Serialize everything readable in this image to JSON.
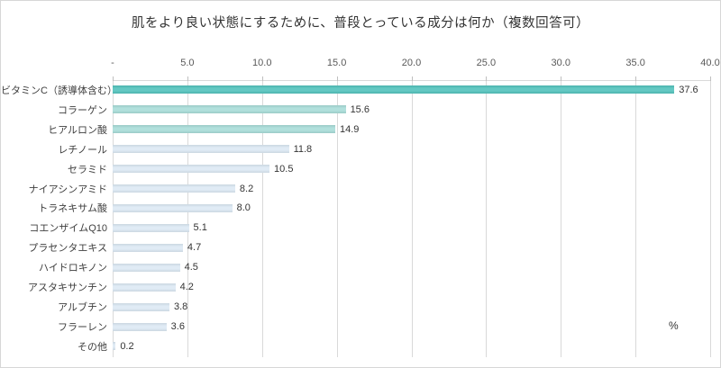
{
  "chart_data": {
    "type": "bar",
    "orientation": "horizontal",
    "title": "肌をより良い状態にするために、普段とっている成分は何か（複数回答可）",
    "unit": "%",
    "xlabel": "",
    "ylabel": "",
    "xlim": [
      0,
      40
    ],
    "grid": "vertical-on",
    "legend": "none",
    "value_labels": "outside-end",
    "x_tick_labels": [
      "-",
      "5.0",
      "10.0",
      "15.0",
      "20.0",
      "25.0",
      "30.0",
      "35.0",
      "40.0"
    ],
    "categories": [
      "ビタミンC（誘導体含む）",
      "コラーゲン",
      "ヒアルロン酸",
      "レチノール",
      "セラミド",
      "ナイアシンアミド",
      "トラネキサム酸",
      "コエンザイムQ10",
      "プラセンタエキス",
      "ハイドロキノン",
      "アスタキサンチン",
      "アルブチン",
      "フラーレン",
      "その他"
    ],
    "values": [
      37.6,
      15.6,
      14.9,
      11.8,
      10.5,
      8.2,
      8.0,
      5.1,
      4.7,
      4.5,
      4.2,
      3.8,
      3.6,
      0.2
    ],
    "bar_colors": [
      "#52c2bc",
      "#a8dcd8",
      "#a8dcd8",
      "#dce9f4",
      "#dce9f4",
      "#dce9f4",
      "#dce9f4",
      "#dce9f4",
      "#dce9f4",
      "#dce9f4",
      "#dce9f4",
      "#dce9f4",
      "#dce9f4",
      "#dce9f4"
    ]
  },
  "colors": {
    "accent_teal": "#52c2bc",
    "tint_teal": "#a8dcd8",
    "light_blue": "#dce9f4",
    "gridline": "#d9d9d9",
    "frame_border": "#d7d7d7",
    "title_text": "#333333",
    "axis_text": "#595959",
    "label_text": "#3f3f3f"
  }
}
